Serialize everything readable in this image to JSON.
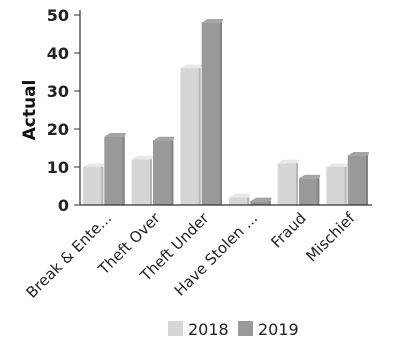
{
  "chart_data": {
    "type": "bar",
    "title": "",
    "xlabel": "",
    "ylabel": "Actual",
    "ylim": [
      0,
      50
    ],
    "yticks": [
      0,
      10,
      20,
      30,
      40,
      50
    ],
    "grid": false,
    "legend_position": "bottom",
    "categories": [
      "Break & Ente...",
      "Theft Over",
      "Theft Under",
      "Have Stolen ...",
      "Fraud",
      "Mischief"
    ],
    "series": [
      {
        "name": "2018",
        "color": "#d6d6d6",
        "values": [
          10,
          12,
          36,
          2,
          11,
          10
        ]
      },
      {
        "name": "2019",
        "color": "#999999",
        "values": [
          18,
          17,
          48,
          1,
          7,
          13
        ]
      }
    ]
  }
}
